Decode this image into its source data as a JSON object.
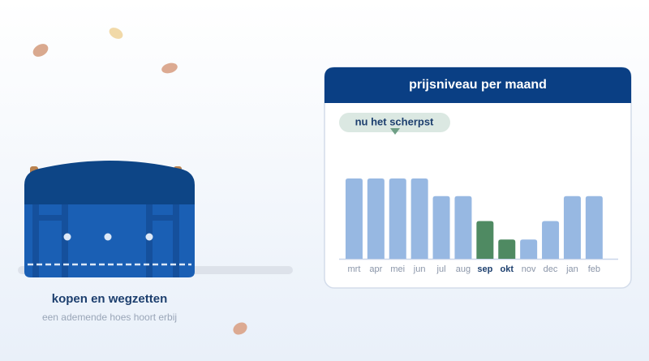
{
  "chart_data": {
    "type": "bar",
    "title": "prijsniveau per maand",
    "annotation": "nu het scherpst",
    "categories": [
      "mrt",
      "apr",
      "mei",
      "jun",
      "jul",
      "aug",
      "sep",
      "okt",
      "nov",
      "dec",
      "jan",
      "feb"
    ],
    "values": [
      100,
      100,
      100,
      100,
      78,
      78,
      47,
      24,
      24,
      47,
      78,
      78
    ],
    "highlight": [
      false,
      false,
      false,
      false,
      false,
      false,
      true,
      true,
      false,
      false,
      false,
      false
    ],
    "color": "#97b8e2",
    "highlight_color": "#4f8a62",
    "ylim": [
      0,
      100
    ]
  },
  "illustration": {
    "title": "kopen en wegzetten",
    "subtitle": "een ademende hoes hoort erbij"
  }
}
